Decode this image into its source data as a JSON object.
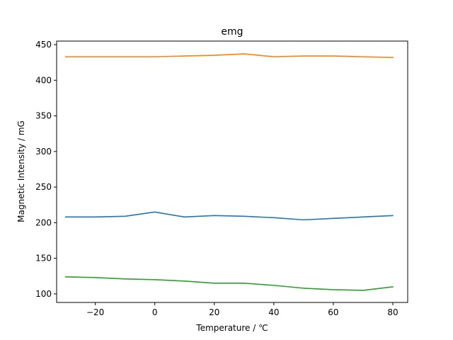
{
  "chart_data": {
    "type": "line",
    "title": "emg",
    "xlabel": "Temperature / ℃",
    "ylabel": "Magnetic Intensity / mG",
    "xlim": [
      -33,
      85
    ],
    "ylim": [
      88,
      455
    ],
    "xticks": [
      -20,
      0,
      20,
      40,
      60,
      80
    ],
    "xtick_labels": [
      "−20",
      "0",
      "20",
      "40",
      "60",
      "80"
    ],
    "yticks": [
      100,
      150,
      200,
      250,
      300,
      350,
      400,
      450
    ],
    "ytick_labels": [
      "100",
      "150",
      "200",
      "250",
      "300",
      "350",
      "400",
      "450"
    ],
    "grid": false,
    "x": [
      -30,
      -20,
      -10,
      0,
      10,
      20,
      30,
      40,
      50,
      60,
      70,
      80
    ],
    "series": [
      {
        "name": "series-1",
        "color": "#1f77b4",
        "values": [
          208,
          208,
          209,
          215,
          208,
          210,
          209,
          207,
          204,
          206,
          208,
          210
        ]
      },
      {
        "name": "series-2",
        "color": "#ff7f0e",
        "values": [
          433,
          433,
          433,
          433,
          434,
          435,
          437,
          433,
          434,
          434,
          433,
          432
        ]
      },
      {
        "name": "series-3",
        "color": "#2ca02c",
        "values": [
          124,
          123,
          121,
          120,
          118,
          115,
          115,
          112,
          108,
          106,
          105,
          110
        ]
      }
    ]
  }
}
